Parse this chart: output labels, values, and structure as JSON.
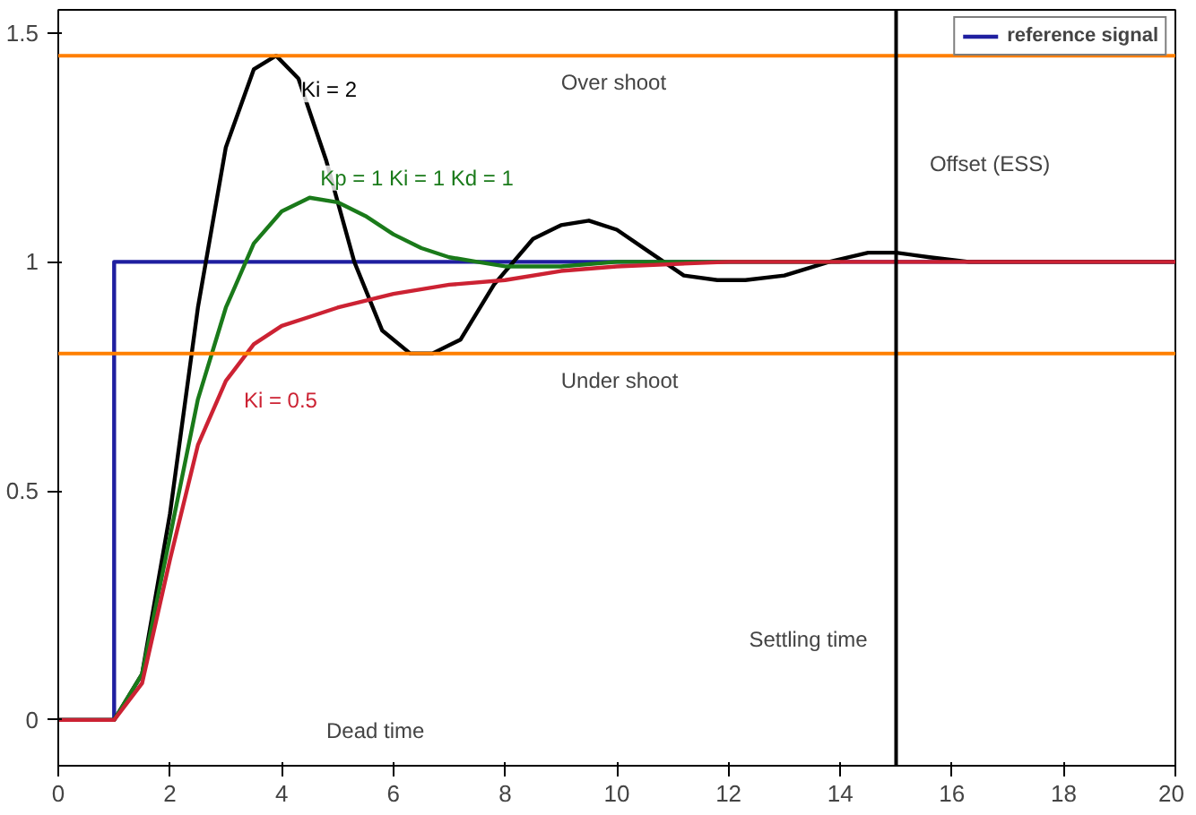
{
  "chart_data": {
    "type": "line",
    "xlim": [
      0,
      20
    ],
    "ylim": [
      -0.1,
      1.55
    ],
    "xticks": [
      0,
      2,
      4,
      6,
      8,
      10,
      12,
      14,
      16,
      18,
      20
    ],
    "yticks": [
      0,
      0.5,
      1,
      1.5
    ],
    "grid": false,
    "legend": "top right",
    "series": [
      {
        "name": "reference signal",
        "color": "#1f1fa0",
        "x": [
          0,
          1,
          1,
          20
        ],
        "values": [
          0,
          0,
          1,
          1
        ]
      },
      {
        "name": "Ki = 2",
        "color": "#000000",
        "x": [
          0,
          1,
          1.5,
          2,
          2.5,
          3,
          3.5,
          3.9,
          4.3,
          4.8,
          5.3,
          5.8,
          6.3,
          6.7,
          7.2,
          7.8,
          8.5,
          9,
          9.5,
          10,
          10.6,
          11.2,
          11.8,
          12.3,
          13,
          13.8,
          14.5,
          15,
          15.6,
          16.3,
          17,
          18,
          19,
          20
        ],
        "values": [
          0,
          0,
          0.1,
          0.45,
          0.9,
          1.25,
          1.42,
          1.45,
          1.4,
          1.22,
          1.0,
          0.85,
          0.8,
          0.8,
          0.83,
          0.95,
          1.05,
          1.08,
          1.09,
          1.07,
          1.02,
          0.97,
          0.96,
          0.96,
          0.97,
          1.0,
          1.02,
          1.02,
          1.01,
          1.0,
          1.0,
          1.0,
          1.0,
          1.0
        ]
      },
      {
        "name": "Kp = 1  Ki = 1  Kd = 1",
        "color": "#1a7a1a",
        "x": [
          0,
          1,
          1.5,
          2,
          2.5,
          3,
          3.5,
          4,
          4.5,
          5,
          5.5,
          6,
          6.5,
          7,
          7.5,
          8,
          9,
          10,
          12,
          14
        ],
        "values": [
          0,
          0,
          0.1,
          0.4,
          0.7,
          0.9,
          1.04,
          1.11,
          1.14,
          1.13,
          1.1,
          1.06,
          1.03,
          1.01,
          1.0,
          0.99,
          0.99,
          1,
          1,
          1
        ]
      },
      {
        "name": "Ki = 0.5",
        "color": "#cc2233",
        "x": [
          0,
          1,
          1.5,
          2,
          2.5,
          3,
          3.5,
          4,
          4.5,
          5,
          6,
          7,
          8,
          9,
          10,
          12,
          14,
          16,
          18,
          20
        ],
        "values": [
          0,
          0,
          0.08,
          0.35,
          0.6,
          0.74,
          0.82,
          0.86,
          0.88,
          0.9,
          0.93,
          0.95,
          0.96,
          0.98,
          0.99,
          1,
          1,
          1,
          1,
          1
        ]
      }
    ],
    "ref_lines": [
      {
        "axis": "y",
        "value": 1.45,
        "color": "#ff7f00",
        "label": "Over shoot"
      },
      {
        "axis": "y",
        "value": 0.8,
        "color": "#ff7f00",
        "label": "Under shoot"
      },
      {
        "axis": "x",
        "value": 15,
        "color": "#000000",
        "label": "Settling time"
      }
    ],
    "annotations": [
      "Offset (ESS)",
      "Dead time"
    ]
  }
}
